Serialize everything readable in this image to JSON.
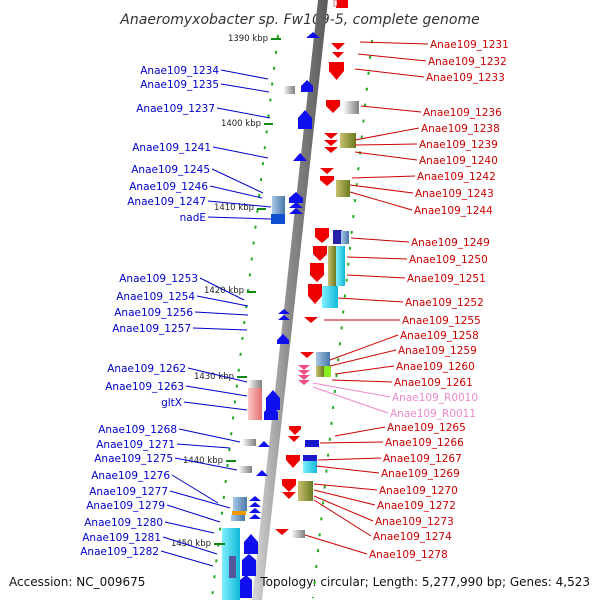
{
  "title": "Anaeromyxobacter sp. Fw109-5, complete genome",
  "accession": "Accession: NC_009675",
  "summary": "Topology: circular; Length: 5,277,990 bp; Genes: 4,523",
  "colors": {
    "left_label": "#0000cc",
    "right_label": "#cc0000",
    "rna_label": "#ee88cc",
    "left_gene": "#0000ee",
    "right_gene": "#ee0000",
    "backbone": "#9a9a9a",
    "tick": "#118811"
  },
  "kbp_marks": [
    "1390 kbp",
    "1400 kbp",
    "1410 kbp",
    "1420 kbp",
    "1430 kbp",
    "1440 kbp",
    "1450 kbp"
  ],
  "left_labels": [
    "Anae109_1234",
    "Anae109_1235",
    "Anae109_1237",
    "Anae109_1241",
    "Anae109_1245",
    "Anae109_1246",
    "Anae109_1247",
    "nadE",
    "Anae109_1253",
    "Anae109_1254",
    "Anae109_1256",
    "Anae109_1257",
    "Anae109_1262",
    "Anae109_1263",
    "gltX",
    "Anae109_1268",
    "Anae109_1271",
    "Anae109_1275",
    "Anae109_1276",
    "Anae109_1277",
    "Anae109_1279",
    "Anae109_1280",
    "Anae109_1281",
    "Anae109_1282"
  ],
  "right_labels": [
    "Anae109_1231",
    "Anae109_1232",
    "Anae109_1233",
    "Anae109_1236",
    "Anae109_1238",
    "Anae109_1239",
    "Anae109_1240",
    "Anae109_1242",
    "Anae109_1243",
    "Anae109_1244",
    "Anae109_1249",
    "Anae109_1250",
    "Anae109_1251",
    "Anae109_1252",
    "Anae109_1255",
    "Anae109_1258",
    "Anae109_1259",
    "Anae109_1260",
    "Anae109_1261",
    "Anae109_R0010",
    "Anae109_R0011",
    "Anae109_1265",
    "Anae109_1266",
    "Anae109_1267",
    "Anae109_1269",
    "Anae109_1270",
    "Anae109_1272",
    "Anae109_1273",
    "Anae109_1274",
    "Anae109_1278"
  ],
  "rna_right_labels": [
    "Anae109_R0010",
    "Anae109_R0011"
  ]
}
